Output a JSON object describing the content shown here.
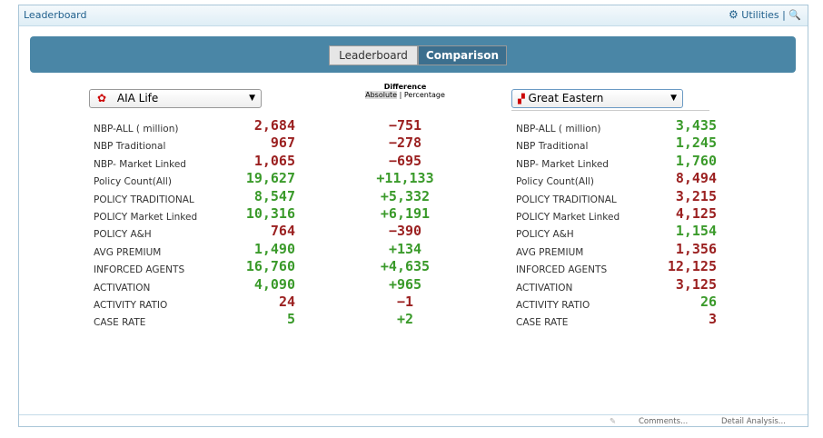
{
  "header": {
    "title": "Leaderboard",
    "utilities": "Utilities"
  },
  "tabs": [
    "Leaderboard",
    "Comparison"
  ],
  "difference": {
    "title": "Difference",
    "options": [
      "Absolute",
      "Percentage"
    ]
  },
  "left_company": "AIA Life",
  "right_company": "Great Eastern",
  "metrics": [
    [
      "NBP-ALL ( million)",
      "2,684",
      "−751",
      "3,435"
    ],
    [
      "NBP Traditional",
      "967",
      "−278",
      "1,245"
    ],
    [
      "NBP- Market Linked",
      "1,065",
      "−695",
      "1,760"
    ],
    [
      "Policy Count(All)",
      "19,627",
      "+11,133",
      "8,494"
    ],
    [
      "POLICY TRADITIONAL",
      "8,547",
      "+5,332",
      "3,215"
    ],
    [
      "POLICY Market Linked",
      "10,316",
      "+6,191",
      "4,125"
    ],
    [
      "POLICY A&H",
      "764",
      "−390",
      "1,154"
    ],
    [
      "AVG PREMIUM",
      "1,490",
      "+134",
      "1,356"
    ],
    [
      "INFORCED AGENTS",
      "16,760",
      "+4,635",
      "12,125"
    ],
    [
      "ACTIVATION",
      "4,090",
      "+965",
      "3,125"
    ],
    [
      "ACTIVITY RATIO",
      "24",
      "−1",
      "26"
    ],
    [
      "CASE RATE",
      "5",
      "+2",
      "3"
    ]
  ],
  "footer": {
    "links": [
      "Comments...",
      "Detail Analysis..."
    ]
  }
}
